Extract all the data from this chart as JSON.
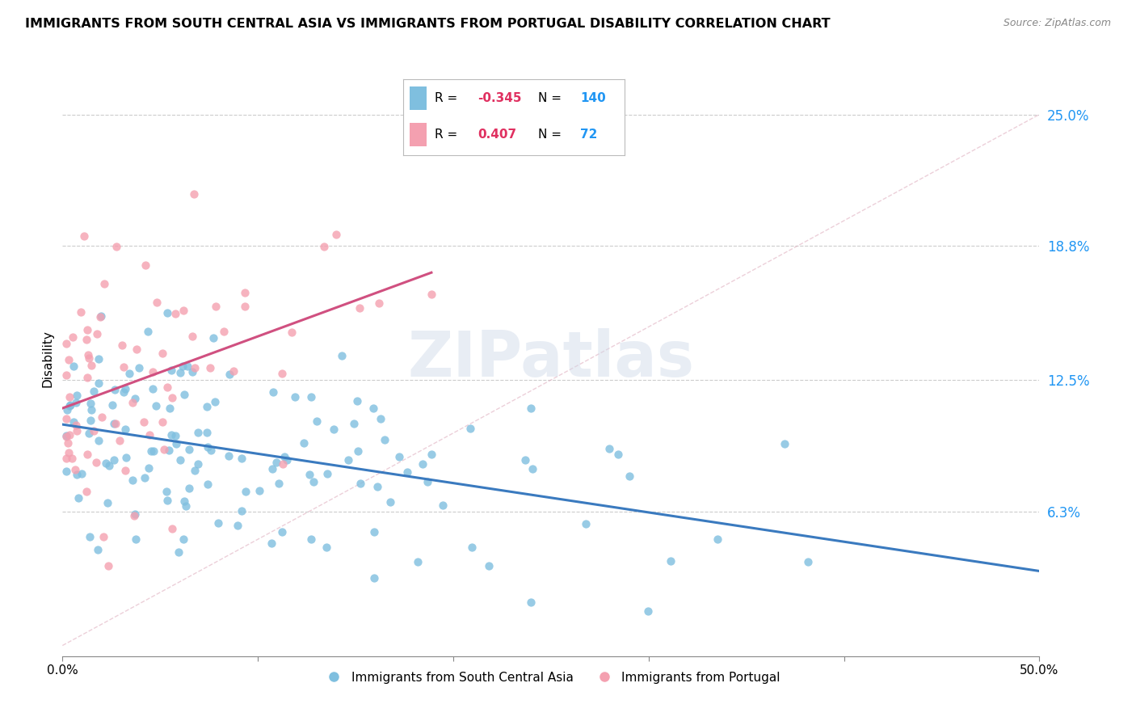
{
  "title": "IMMIGRANTS FROM SOUTH CENTRAL ASIA VS IMMIGRANTS FROM PORTUGAL DISABILITY CORRELATION CHART",
  "source": "Source: ZipAtlas.com",
  "ylabel": "Disability",
  "ytick_labels": [
    "6.3%",
    "12.5%",
    "18.8%",
    "25.0%"
  ],
  "ytick_values": [
    0.063,
    0.125,
    0.188,
    0.25
  ],
  "xlim": [
    0.0,
    0.5
  ],
  "ylim": [
    -0.005,
    0.275
  ],
  "legend_blue_r": "-0.345",
  "legend_blue_n": "140",
  "legend_pink_r": "0.407",
  "legend_pink_n": "72",
  "blue_color": "#7fbfdf",
  "pink_color": "#f4a0b0",
  "blue_line_color": "#3a7abf",
  "pink_line_color": "#d05080",
  "watermark": "ZIPatlas",
  "xtick_positions": [
    0.0,
    0.1,
    0.2,
    0.3,
    0.4,
    0.5
  ],
  "xtick_labels": [
    "0.0%",
    "",
    "",
    "",
    "",
    "50.0%"
  ]
}
